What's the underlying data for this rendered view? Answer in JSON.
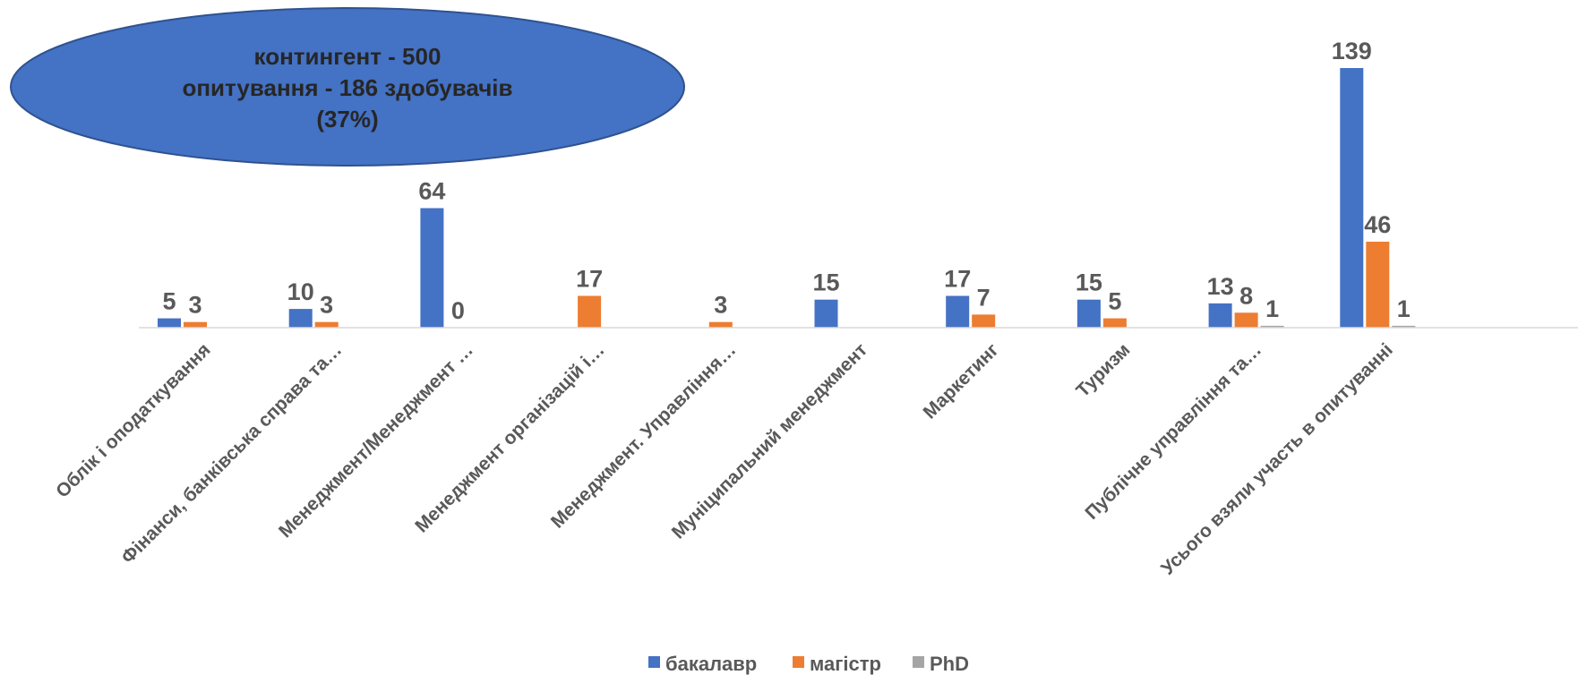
{
  "callout": {
    "lines": [
      "контингент - 500",
      "опитування - 186 здобувачів",
      "(37%)"
    ],
    "color": "#4472C4"
  },
  "chart_data": {
    "type": "bar",
    "categories": [
      "Облік і оподаткування",
      "Фінанси, банківська справа та…",
      "Менеджмент/Менеджмент …",
      "Менеджмент організацій і…",
      "Менеджмент. Управління…",
      "Муніципальний менеджмент",
      "Маркетинг",
      "Туризм",
      "Публічне управління та…",
      "Усього взяли участь в опитуванні"
    ],
    "series": [
      {
        "name": "бакалавр",
        "color": "#4472C4",
        "values": [
          5,
          10,
          64,
          null,
          null,
          15,
          17,
          15,
          13,
          139
        ]
      },
      {
        "name": "магістр",
        "color": "#ED7D31",
        "values": [
          3,
          3,
          0,
          17,
          3,
          null,
          7,
          5,
          8,
          46
        ]
      },
      {
        "name": "PhD",
        "color": "#A5A5A5",
        "values": [
          null,
          null,
          null,
          null,
          null,
          null,
          null,
          null,
          1,
          1
        ]
      }
    ],
    "ylim": [
      0,
      139
    ],
    "grid": false,
    "legend": "bottom-center"
  }
}
